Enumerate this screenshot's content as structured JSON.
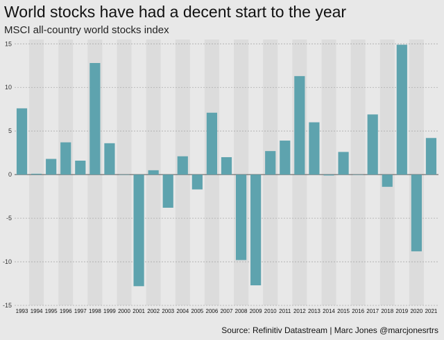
{
  "chart_data": {
    "type": "bar",
    "title": "World stocks have had a decent start to the year",
    "subtitle": "MSCI all-country world stocks index",
    "source": "Source: Refinitiv Datastream | Marc Jones @marcjonesrtrs",
    "xlabel": "",
    "ylabel": "",
    "ylim": [
      -15,
      15.5
    ],
    "yticks": [
      15,
      10,
      5,
      0,
      -5,
      -10,
      -15
    ],
    "grid": true,
    "categories": [
      "1993",
      "1994",
      "1995",
      "1996",
      "1997",
      "1998",
      "1999",
      "2000",
      "2001",
      "2002",
      "2003",
      "2004",
      "2005",
      "2006",
      "2007",
      "2008",
      "2009",
      "2010",
      "2011",
      "2012",
      "2013",
      "2014",
      "2015",
      "2016",
      "2017",
      "2018",
      "2019",
      "2020",
      "2021"
    ],
    "values": [
      7.6,
      0.1,
      1.8,
      3.7,
      1.6,
      12.8,
      3.6,
      0.0,
      -12.8,
      0.5,
      -3.8,
      2.1,
      -1.7,
      7.1,
      2.0,
      -9.8,
      -12.7,
      2.7,
      3.9,
      11.3,
      6.0,
      -0.1,
      2.6,
      0.0,
      6.9,
      -1.4,
      14.9,
      -8.8,
      4.2
    ],
    "bar_color": "#5ea3ae"
  }
}
